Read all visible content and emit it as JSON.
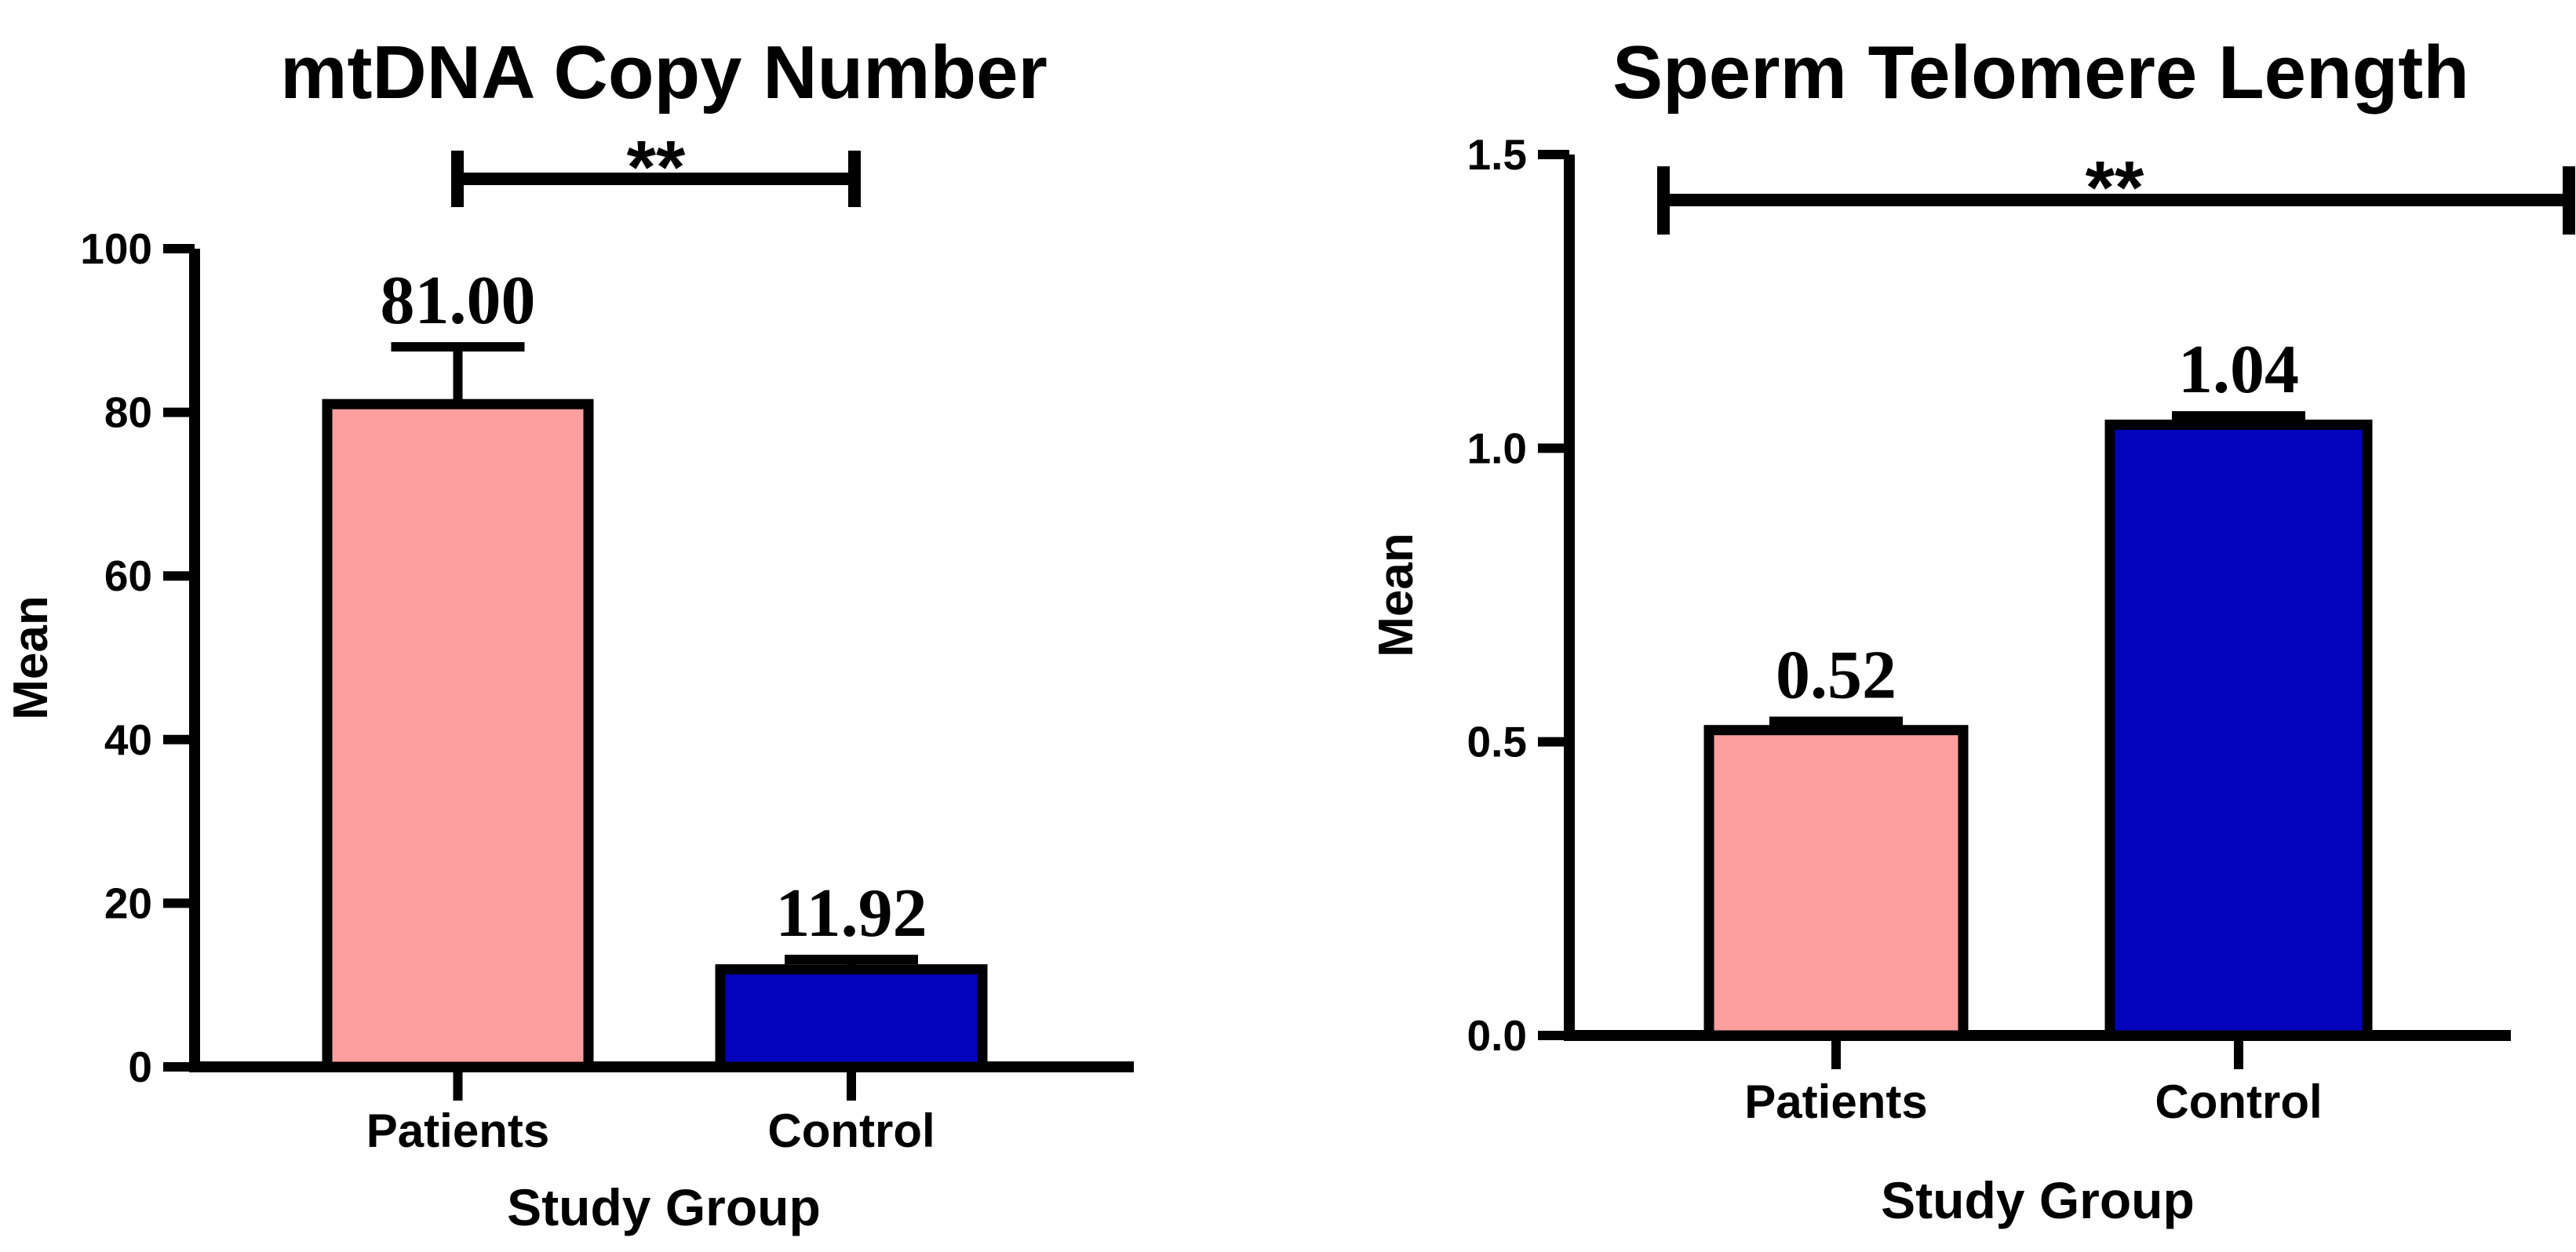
{
  "figure": {
    "background_color": "#ffffff",
    "ink_color": "#000000"
  },
  "chart_data": [
    {
      "type": "bar",
      "title": "mtDNA Copy Number",
      "xlabel": "Study Group",
      "ylabel": "Mean",
      "categories": [
        "Patients",
        "Control"
      ],
      "values": [
        81.0,
        11.92
      ],
      "value_labels": [
        "81.00",
        "11.92"
      ],
      "errors_plus": [
        7.0,
        1.2
      ],
      "bar_colors": [
        "#FC9E9E",
        "#0303BC"
      ],
      "ylim": [
        0,
        100
      ],
      "yticks": [
        0,
        20,
        40,
        60,
        80,
        100
      ],
      "ytick_labels": [
        "0",
        "20",
        "40",
        "60",
        "80",
        "100"
      ],
      "grid": false,
      "legend": "none",
      "significance": {
        "label": "**",
        "span": "bar-centers"
      }
    },
    {
      "type": "bar",
      "title": "Sperm Telomere Length",
      "xlabel": "Study Group",
      "ylabel": "Mean",
      "categories": [
        "Patients",
        "Control"
      ],
      "values": [
        0.52,
        1.04
      ],
      "value_labels": [
        "0.52",
        "1.04"
      ],
      "errors_plus": [
        0.015,
        0.015
      ],
      "bar_colors": [
        "#FC9E9E",
        "#0303BC"
      ],
      "ylim": [
        0,
        1.5
      ],
      "yticks": [
        0,
        0.5,
        1.0,
        1.5
      ],
      "ytick_labels": [
        "0.0",
        "0.5",
        "1.0",
        "1.5"
      ],
      "grid": false,
      "legend": "none",
      "significance": {
        "label": "**",
        "span": "plot-width"
      }
    }
  ]
}
